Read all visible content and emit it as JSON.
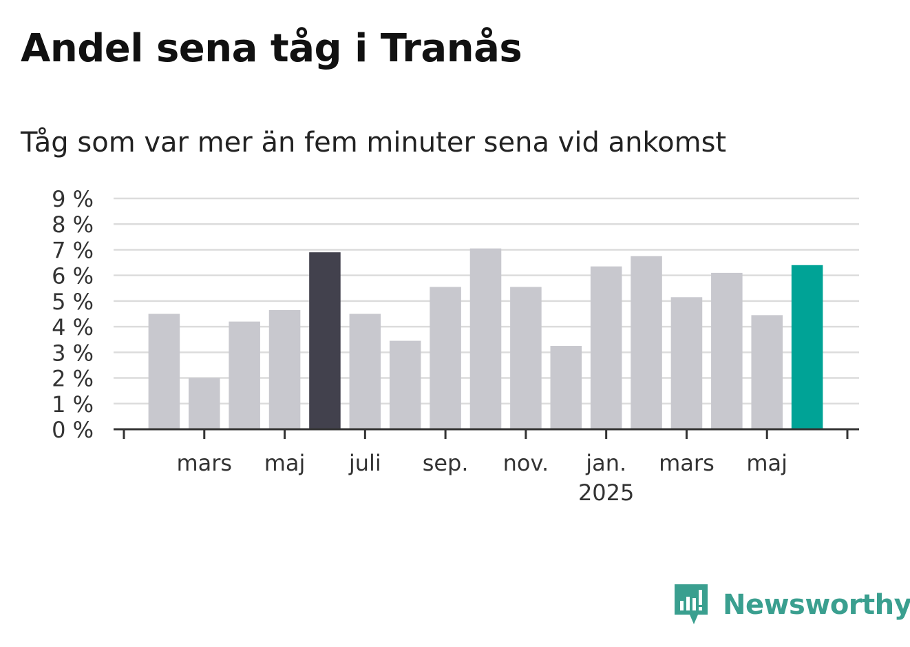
{
  "title": "Andel sena tåg i Tranås",
  "subtitle": "Tåg som var mer än fem minuter sena vid ankomst",
  "brand": {
    "name": "Newsworthy",
    "icon": "newsworthy-logo-icon",
    "color": "#3a9f8f"
  },
  "chart_data": {
    "type": "bar",
    "ylim": [
      0,
      9
    ],
    "y_ticks": [
      {
        "value": 0,
        "label": "0 %"
      },
      {
        "value": 1,
        "label": "1 %"
      },
      {
        "value": 2,
        "label": "2 %"
      },
      {
        "value": 3,
        "label": "3 %"
      },
      {
        "value": 4,
        "label": "4 %"
      },
      {
        "value": 5,
        "label": "5 %"
      },
      {
        "value": 6,
        "label": "6 %"
      },
      {
        "value": 7,
        "label": "7 %"
      },
      {
        "value": 8,
        "label": "8 %"
      },
      {
        "value": 9,
        "label": "9 %"
      }
    ],
    "grid": true,
    "x_tick_labels": [
      {
        "month": "2024-03",
        "label": "mars"
      },
      {
        "month": "2024-05",
        "label": "maj"
      },
      {
        "month": "2024-07",
        "label": "juli"
      },
      {
        "month": "2024-09",
        "label": "sep."
      },
      {
        "month": "2024-11",
        "label": "nov."
      },
      {
        "month": "2025-01",
        "label": "jan.",
        "sublabel": "2025"
      },
      {
        "month": "2025-03",
        "label": "mars"
      },
      {
        "month": "2025-05",
        "label": "maj"
      }
    ],
    "x": [
      "2024-02",
      "2024-03",
      "2024-04",
      "2024-05",
      "2024-06",
      "2024-07",
      "2024-08",
      "2024-09",
      "2024-10",
      "2024-11",
      "2024-12",
      "2025-01",
      "2025-02",
      "2025-03",
      "2025-04",
      "2025-05",
      "2025-06"
    ],
    "values": [
      4.5,
      2.0,
      4.2,
      4.65,
      6.9,
      4.5,
      3.45,
      5.55,
      7.05,
      5.55,
      3.25,
      6.35,
      6.75,
      5.15,
      6.1,
      4.45,
      6.4
    ],
    "colors": {
      "default": "#c8c8ce",
      "highlight_previous_year": "#42414d",
      "highlight_current": "#00a396",
      "grid": "#dcdcdc",
      "axis": "#333333"
    },
    "highlight_previous_year_month": "2024-06",
    "highlight_current_month": "2025-06"
  }
}
